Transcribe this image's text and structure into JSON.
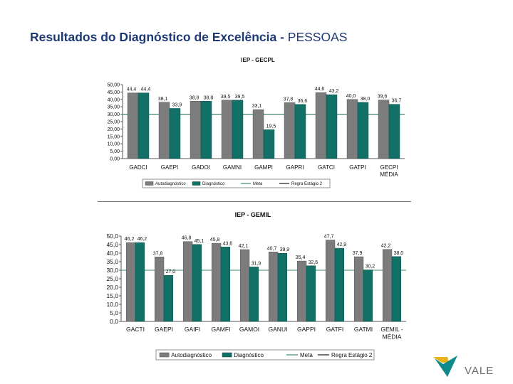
{
  "slide": {
    "title_bold": "Resultados do Diagnóstico de Excelência - ",
    "title_normal": "PESSOAS"
  },
  "logo": {
    "text": "VALE"
  },
  "colors": {
    "auto": "#7c7c7c",
    "diag": "#127067",
    "meta": "#3d8a6e",
    "regra": "#1a1a1a"
  },
  "chart_data": [
    {
      "type": "bar",
      "title": "IEP - GECPL",
      "categories": [
        "GADCI",
        "GAEPI",
        "GADOI",
        "GAMNI",
        "GAMPI",
        "GAPRI",
        "GATCI",
        "GATPI",
        "GECPI\nMÉDIA"
      ],
      "series": [
        {
          "name": "Autodiagnóstico",
          "values": [
            44.4,
            38.1,
            38.8,
            39.5,
            33.1,
            37.8,
            44.6,
            40.0,
            39.6
          ],
          "labels": [
            "44,4",
            "38,1",
            "38,8",
            "39,5",
            "33,1",
            "37,8",
            "44,6",
            "40,0",
            "39,6"
          ]
        },
        {
          "name": "Diagnóstico",
          "values": [
            44.4,
            33.9,
            38.8,
            39.5,
            19.5,
            36.6,
            43.2,
            38.0,
            36.7
          ],
          "labels": [
            "44,4",
            "33,9",
            "38,8",
            "39,5",
            "19,5",
            "36,6",
            "43,2",
            "38,0",
            "36,7"
          ]
        },
        {
          "name": "Meta",
          "values": [
            30,
            30,
            30,
            30,
            30,
            30,
            30,
            30,
            30
          ]
        },
        {
          "name": "Regra Estágio 2",
          "values": [
            30,
            30,
            30,
            30,
            30,
            30,
            30,
            30,
            30
          ]
        }
      ],
      "ylim": [
        0,
        50
      ],
      "yticks": [
        "0,00",
        "5,00",
        "10,00",
        "15,00",
        "20,00",
        "25,00",
        "30,00",
        "35,00",
        "40,00",
        "45,00",
        "50,00"
      ],
      "legend_position": "bottom",
      "grid": false
    },
    {
      "type": "bar",
      "title": "IEP - GEMIL",
      "categories": [
        "GACTI",
        "GAEPI",
        "GAIFI",
        "GAMFI",
        "GAMOI",
        "GANUI",
        "GAPPI",
        "GATFI",
        "GATMI",
        "GEMIL -\nMÉDIA"
      ],
      "series": [
        {
          "name": "Autodiagnóstico",
          "values": [
            46.2,
            37.8,
            46.8,
            45.8,
            42.1,
            40.7,
            35.4,
            47.7,
            37.9,
            42.2
          ],
          "labels": [
            "46,2",
            "37,8",
            "46,8",
            "45,8",
            "42,1",
            "40,7",
            "35,4",
            "47,7",
            "37,9",
            "42,2"
          ]
        },
        {
          "name": "Diagnóstico",
          "values": [
            46.2,
            27.0,
            45.1,
            43.6,
            31.9,
            39.9,
            32.6,
            42.9,
            30.2,
            38.0
          ],
          "labels": [
            "46,2",
            "27,0",
            "45,1",
            "43,6",
            "31,9",
            "39,9",
            "32,6",
            "42,9",
            "30,2",
            "38,0"
          ]
        },
        {
          "name": "Meta",
          "values": [
            30,
            30,
            30,
            30,
            30,
            30,
            30,
            30,
            30,
            30
          ]
        },
        {
          "name": "Regra Estágio 2",
          "values": [
            30,
            30,
            30,
            30,
            30,
            30,
            30,
            30,
            30,
            30
          ]
        }
      ],
      "ylim": [
        0,
        50
      ],
      "yticks": [
        "0,0",
        "5,0",
        "10,0",
        "15,0",
        "20,0",
        "25,0",
        "30,0",
        "35,0",
        "40,0",
        "45,0",
        "50,0"
      ],
      "legend_position": "bottom",
      "grid": false
    }
  ]
}
